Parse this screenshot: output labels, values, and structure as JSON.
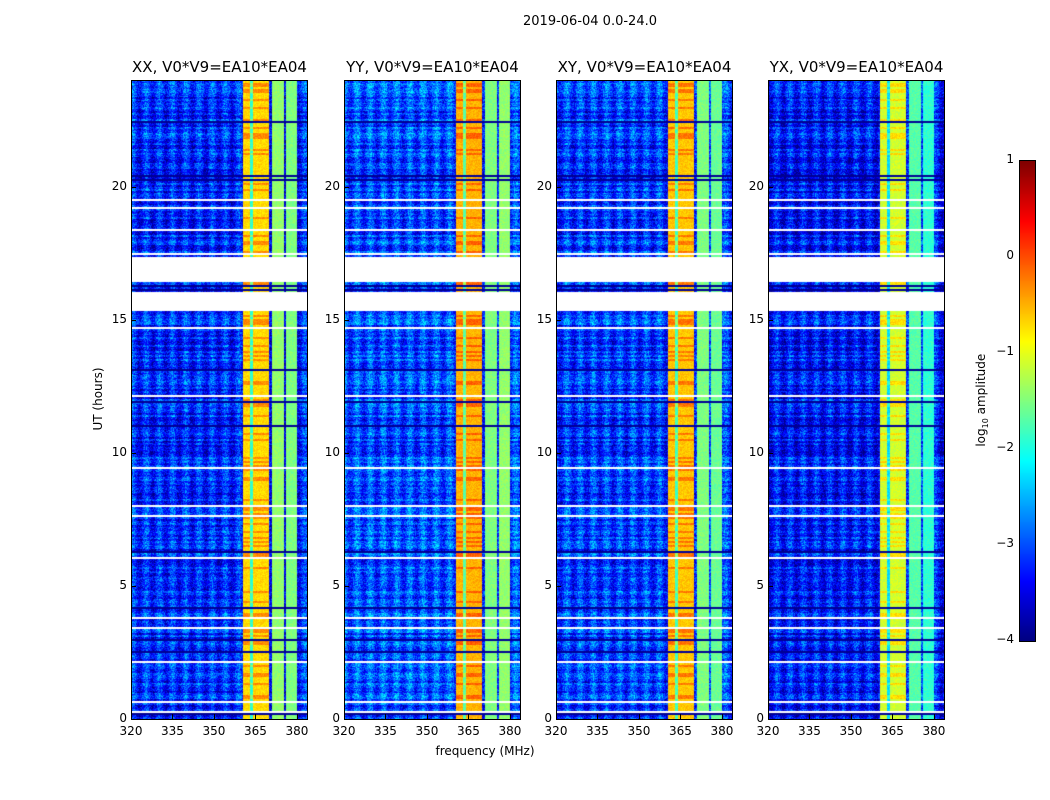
{
  "figure_title": "2019-06-04 0.0-24.0",
  "chart_data": {
    "type": "heatmap",
    "xlabel": "frequency (MHz)",
    "ylabel": "UT (hours)",
    "xlim": [
      320,
      384
    ],
    "ylim": [
      0,
      24
    ],
    "xticks": [
      320,
      335,
      350,
      365,
      380
    ],
    "yticks": [
      0,
      5,
      10,
      15,
      20
    ],
    "data_gaps_hours": [
      [
        15.35,
        16.1
      ],
      [
        16.45,
        17.4
      ]
    ],
    "rfi_bands_mhz": [
      [
        360.5,
        370
      ],
      [
        371,
        375.5
      ],
      [
        376,
        380
      ]
    ],
    "panels": [
      {
        "title": "XX, V0*V9=EA10*EA04",
        "background_log_amp": -3.2,
        "band_log_amp": [
          -0.7,
          -1.4,
          -1.5
        ]
      },
      {
        "title": "YY, V0*V9=EA10*EA04",
        "background_log_amp": -3.0,
        "band_log_amp": [
          -0.5,
          -1.5,
          -1.4
        ]
      },
      {
        "title": "XY, V0*V9=EA10*EA04",
        "background_log_amp": -3.1,
        "band_log_amp": [
          -0.6,
          -1.5,
          -1.6
        ]
      },
      {
        "title": "YX, V0*V9=EA10*EA04",
        "background_log_amp": -3.3,
        "band_log_amp": [
          -1.1,
          -1.7,
          -1.9
        ]
      }
    ],
    "colorbar": {
      "label": "log10 amplitude",
      "label_main": "log",
      "label_sub": "10",
      "label_rest": " amplitude",
      "range": [
        -4,
        1
      ],
      "ticks": [
        "1",
        "0",
        "−1",
        "−2",
        "−3",
        "−4"
      ],
      "tick_values": [
        1,
        0,
        -1,
        -2,
        -3,
        -4
      ],
      "colormap": "jet"
    }
  }
}
